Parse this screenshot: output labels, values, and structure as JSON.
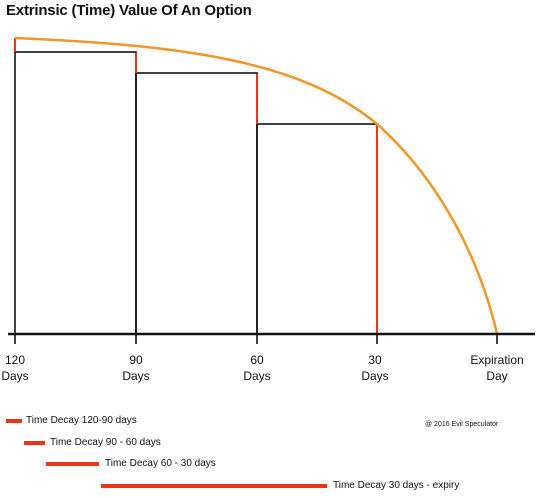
{
  "title": "Extrinsic (Time) Value Of An Option",
  "axis_labels": [
    {
      "line1": "120",
      "line2": "Days"
    },
    {
      "line1": "90",
      "line2": "Days"
    },
    {
      "line1": "60",
      "line2": "Days"
    },
    {
      "line1": "30",
      "line2": "Days"
    },
    {
      "line1": "Expiration",
      "line2": "Day"
    }
  ],
  "legend": [
    {
      "label": "Time Decay 120-90 days"
    },
    {
      "label": "Time Decay 90 - 60 days"
    },
    {
      "label": "Time Decay 60 - 30 days"
    },
    {
      "label": "Time Decay 30 days - expiry"
    }
  ],
  "copyright": "@ 2016 Evil Speculator",
  "colors": {
    "curve": "#f0962a",
    "decay": "#e8351c",
    "lines": "#111111"
  }
}
